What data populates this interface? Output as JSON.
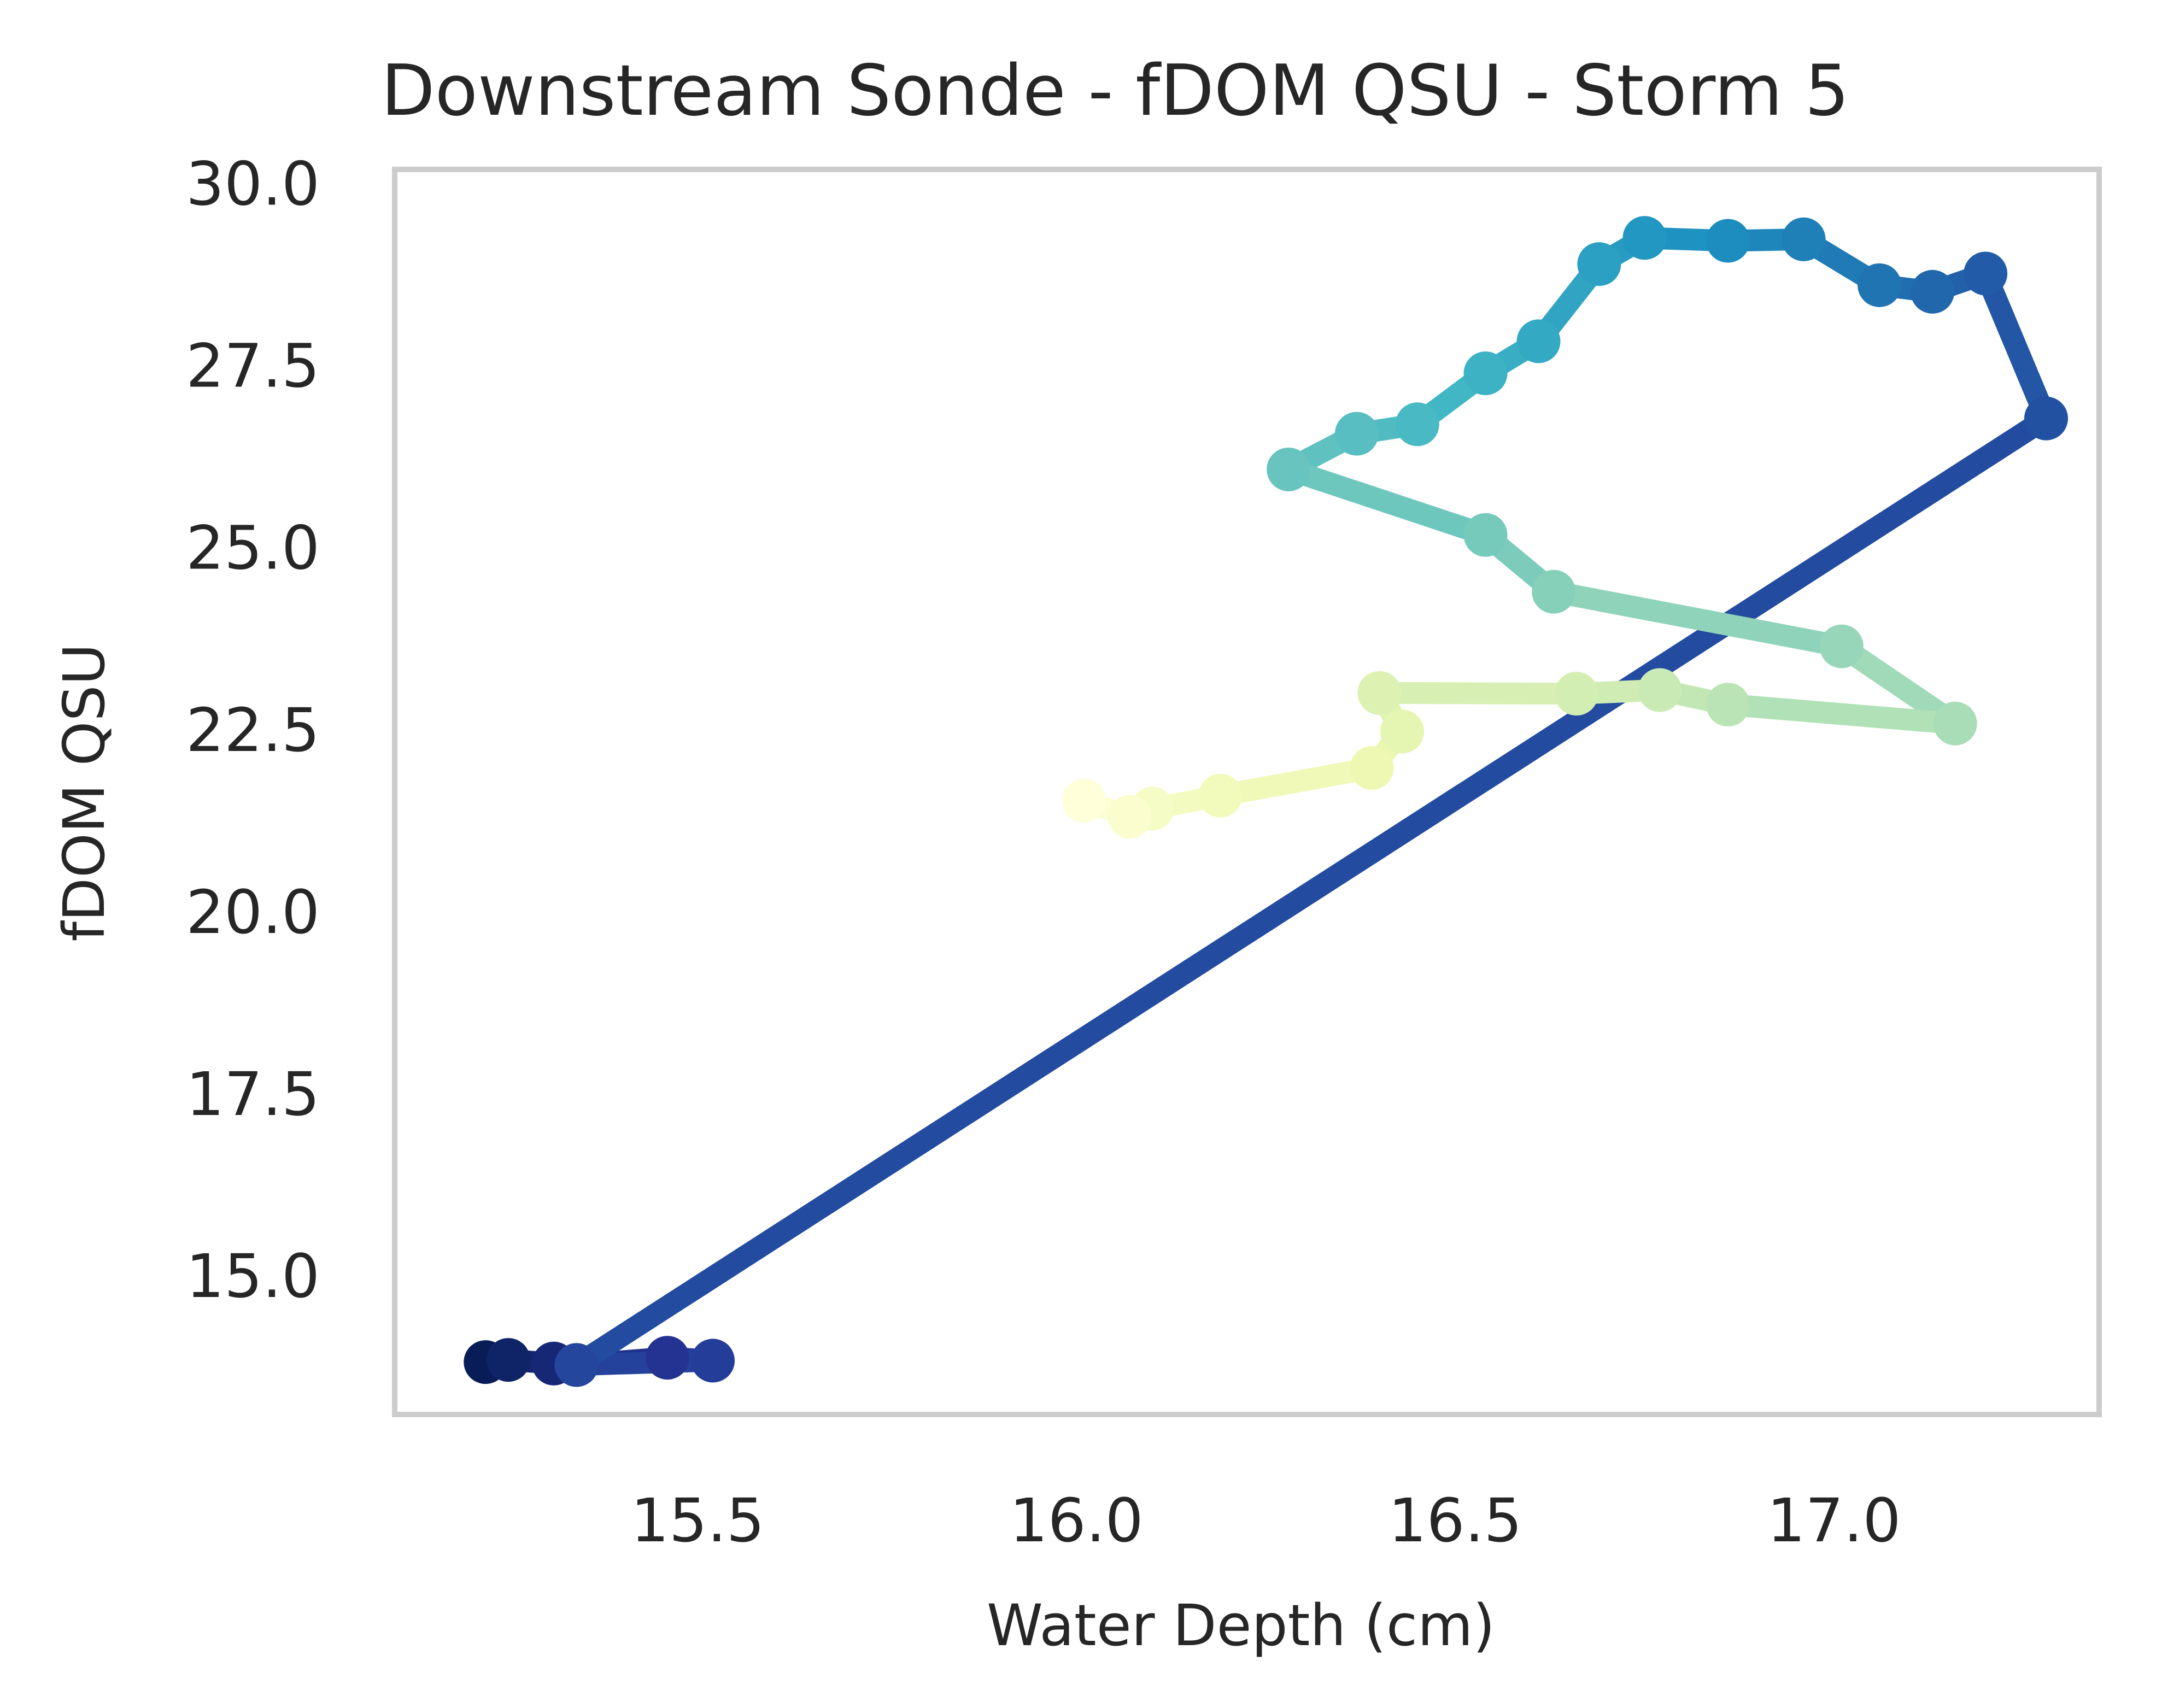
{
  "chart_data": {
    "type": "line",
    "title": "Downstream Sonde - fDOM QSU - Storm 5",
    "xlabel": "Water Depth (cm)",
    "ylabel": "fDOM QSU",
    "xlim": [
      15.1,
      17.35
    ],
    "ylim": [
      13.1,
      30.2
    ],
    "x_ticks": [
      15.5,
      16.0,
      16.5,
      17.0
    ],
    "x_tick_labels": [
      "15.5",
      "16.0",
      "16.5",
      "17.0"
    ],
    "y_ticks": [
      15.0,
      17.5,
      20.0,
      22.5,
      25.0,
      27.5,
      30.0
    ],
    "y_tick_labels": [
      "15.0",
      "17.5",
      "20.0",
      "22.5",
      "25.0",
      "27.5",
      "30.0"
    ],
    "grid": false,
    "colormap": "YlGnBu",
    "series": [
      {
        "x": [
          15.22,
          15.25,
          15.31,
          15.34,
          15.46,
          15.52,
          15.34,
          17.28,
          17.2,
          17.13,
          17.06,
          16.96,
          16.86,
          16.75,
          16.69,
          16.61,
          16.54,
          16.45,
          16.37,
          16.28,
          16.54,
          16.63,
          17.01,
          17.16,
          16.86,
          16.77,
          16.66,
          16.4,
          16.43,
          16.39,
          16.19,
          16.1,
          16.07,
          16.01
        ],
        "y": [
          13.82,
          13.85,
          13.8,
          13.78,
          13.88,
          13.84,
          13.78,
          26.78,
          28.77,
          28.52,
          28.61,
          29.24,
          29.22,
          29.26,
          28.9,
          27.84,
          27.4,
          26.7,
          26.57,
          26.08,
          25.18,
          24.4,
          23.65,
          22.59,
          22.85,
          23.05,
          23.0,
          23.01,
          22.48,
          21.98,
          21.6,
          21.42,
          21.31,
          21.53
        ]
      }
    ]
  }
}
